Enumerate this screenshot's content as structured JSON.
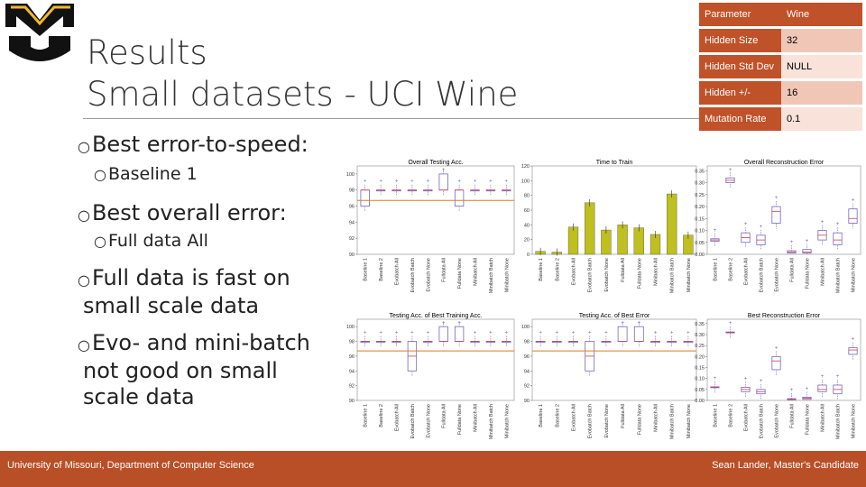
{
  "title": {
    "line1": "Results",
    "line2": "Small datasets - UCI Wine"
  },
  "bullets": [
    {
      "text": "Best error-to-speed:",
      "sub": "Baseline 1"
    },
    {
      "text": "Best overall error:",
      "sub": "Full data All"
    },
    {
      "line1": "Full data is fast on",
      "line2": "small scale data"
    },
    {
      "line1": "Evo- and mini-batch",
      "line2": "not good on small",
      "line3": "scale data"
    }
  ],
  "param_table": {
    "header": [
      "Parameter",
      "Wine"
    ],
    "rows": [
      [
        "Hidden Size",
        "32"
      ],
      [
        "Hidden Std Dev",
        "NULL"
      ],
      [
        "Hidden +/-",
        "16"
      ],
      [
        "Mutation Rate",
        "0.1"
      ]
    ]
  },
  "colors": {
    "brand": "#c0522a",
    "footer": "#b94f26",
    "bar": "#bfbf1f",
    "box": "#7565c0",
    "median": "#e07a20"
  },
  "footer": {
    "left": "University of Missouri, Department of Computer Science",
    "right": "Sean Lander, Master's Candidate"
  },
  "chart_data": [
    {
      "type": "box",
      "title": "Overall Testing Acc.",
      "categories": [
        "Baseline 1",
        "Baseline 2",
        "Evobatch All",
        "Evobatch Batch",
        "Evobatch None",
        "Fulldata All",
        "Fulldata None",
        "Minibatch All",
        "Minibatch Batch",
        "Minibatch None"
      ],
      "yticks": [
        "90",
        "92",
        "94",
        "96",
        "98",
        "100"
      ],
      "ylim": [
        90,
        101
      ],
      "medians": [
        98,
        98,
        98,
        98,
        98,
        98,
        98,
        98,
        98,
        98
      ],
      "q1": [
        96,
        98,
        98,
        98,
        98,
        98,
        96,
        98,
        98,
        98
      ],
      "q3": [
        98,
        98,
        98,
        98,
        98,
        100,
        98,
        98,
        98,
        98
      ],
      "ref_line": 96.7
    },
    {
      "type": "bar",
      "title": "Time to Train",
      "categories": [
        "Baseline 1",
        "Baseline 2",
        "Evobatch All",
        "Evobatch Batch",
        "Evobatch None",
        "Fulldata All",
        "Fulldata None",
        "Minibatch All",
        "Minibatch Batch",
        "Minibatch None"
      ],
      "values": [
        4,
        3,
        37,
        70,
        33,
        40,
        36,
        27,
        82,
        26
      ],
      "yticks": [
        "0",
        "20",
        "40",
        "60",
        "80",
        "100",
        "120"
      ],
      "ylim": [
        0,
        120
      ]
    },
    {
      "type": "box",
      "title": "Overall Reconstruction Error",
      "categories": [
        "Baseline 1",
        "Baseline 2",
        "Evobatch All",
        "Evobatch Batch",
        "Evobatch None",
        "Fulldata All",
        "Fulldata None",
        "Minibatch All",
        "Minibatch Batch",
        "Minibatch None"
      ],
      "yticks": [
        "0.00",
        "0.05",
        "0.10",
        "0.15",
        "0.20",
        "0.25",
        "0.30",
        "0.35"
      ],
      "ylim": [
        0,
        0.37
      ],
      "medians": [
        0.06,
        0.31,
        0.07,
        0.06,
        0.18,
        0.01,
        0.01,
        0.08,
        0.06,
        0.15
      ],
      "q1": [
        0.055,
        0.3,
        0.05,
        0.04,
        0.13,
        0.005,
        0.005,
        0.06,
        0.04,
        0.13
      ],
      "q3": [
        0.065,
        0.32,
        0.09,
        0.08,
        0.2,
        0.015,
        0.02,
        0.1,
        0.09,
        0.19
      ]
    },
    {
      "type": "box",
      "title": "Testing Acc. of Best Training Acc.",
      "categories": [
        "Baseline 1",
        "Baseline 2",
        "Evobatch All",
        "Evobatch Batch",
        "Evobatch None",
        "Fulldata All",
        "Fulldata None",
        "Minibatch All",
        "Minibatch Batch",
        "Minibatch None"
      ],
      "yticks": [
        "90",
        "92",
        "94",
        "96",
        "98",
        "100"
      ],
      "ylim": [
        90,
        101
      ],
      "medians": [
        98,
        98,
        98,
        96,
        98,
        98,
        98,
        98,
        98,
        98
      ],
      "q1": [
        98,
        98,
        98,
        94,
        98,
        98,
        98,
        98,
        98,
        98
      ],
      "q3": [
        98,
        98,
        98,
        98,
        98,
        100,
        100,
        98,
        98,
        98
      ],
      "ref_line": 96.7
    },
    {
      "type": "box",
      "title": "Testing Acc. of Best Error",
      "categories": [
        "Baseline 1",
        "Baseline 2",
        "Evobatch All",
        "Evobatch Batch",
        "Evobatch None",
        "Fulldata All",
        "Fulldata None",
        "Minibatch All",
        "Minibatch Batch",
        "Minibatch None"
      ],
      "yticks": [
        "90",
        "92",
        "94",
        "96",
        "98",
        "100"
      ],
      "ylim": [
        90,
        101
      ],
      "medians": [
        98,
        98,
        98,
        96,
        98,
        98,
        98,
        98,
        98,
        98
      ],
      "q1": [
        98,
        98,
        98,
        94,
        98,
        98,
        98,
        98,
        98,
        98
      ],
      "q3": [
        98,
        98,
        98,
        98,
        98,
        100,
        100,
        98,
        98,
        98
      ],
      "ref_line": 96.7
    },
    {
      "type": "box",
      "title": "Best Reconstruction Error",
      "categories": [
        "Baseline 1",
        "Baseline 2",
        "Evobatch All",
        "Evobatch Batch",
        "Evobatch None",
        "Fulldata All",
        "Fulldata None",
        "Minibatch All",
        "Minibatch Batch",
        "Minibatch None"
      ],
      "yticks": [
        "0.00",
        "0.05",
        "0.10",
        "0.15",
        "0.20",
        "0.25",
        "0.30",
        "0.35"
      ],
      "ylim": [
        0,
        0.37
      ],
      "medians": [
        0.06,
        0.31,
        0.05,
        0.04,
        0.18,
        0.005,
        0.01,
        0.05,
        0.05,
        0.23
      ],
      "q1": [
        0.058,
        0.308,
        0.04,
        0.03,
        0.14,
        0.003,
        0.005,
        0.04,
        0.03,
        0.21
      ],
      "q3": [
        0.062,
        0.312,
        0.06,
        0.05,
        0.2,
        0.008,
        0.015,
        0.07,
        0.07,
        0.24
      ]
    }
  ]
}
